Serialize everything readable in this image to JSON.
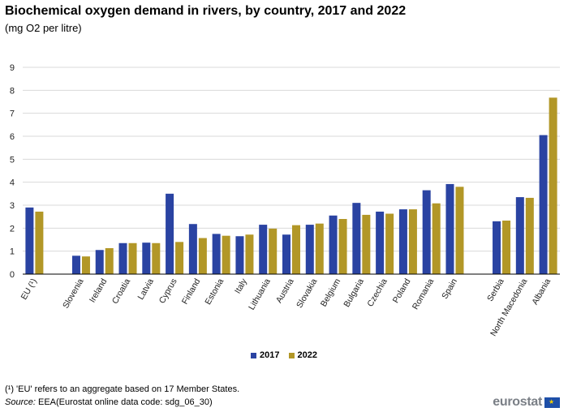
{
  "header": {
    "title": "Biochemical oxygen demand in rivers, by country, 2017 and 2022",
    "subtitle": "(mg  O2 per litre)"
  },
  "legend": {
    "s2017": "2017",
    "s2022": "2022"
  },
  "footer": {
    "footnote": "(¹) 'EU' refers to an aggregate based on 17 Member States.",
    "source_label": "Source:",
    "source_text": " EEA(Eurostat online data code: sdg_06_30)",
    "logo": "eurostat"
  },
  "colors": {
    "s2017": "#2a43a2",
    "s2022": "#b29727",
    "grid": "#d9d9d9",
    "axis": "#000000"
  },
  "chart_data": {
    "type": "bar",
    "title": "Biochemical oxygen demand in rivers, by country, 2017 and 2022",
    "ylabel": "mg O2 per litre",
    "ylim": [
      0,
      9
    ],
    "yticks": [
      "0",
      "1",
      "2",
      "3",
      "4",
      "5",
      "6",
      "7",
      "8",
      "9"
    ],
    "grid": true,
    "legend_position": "bottom",
    "categories": [
      "EU (¹)",
      "",
      "Slovenia",
      "Ireland",
      "Croatia",
      "Latvia",
      "Cyprus",
      "Finland",
      "Estonia",
      "Italy",
      "Lithuania",
      "Austria",
      "Slovakia",
      "Belgium",
      "Bulgaria",
      "Czechia",
      "Poland",
      "Romania",
      "Spain",
      "",
      "Serbia",
      "North Macedonia",
      "Albania"
    ],
    "series": [
      {
        "name": "2017",
        "values": [
          2.9,
          null,
          0.8,
          1.05,
          1.35,
          1.37,
          3.5,
          2.18,
          1.75,
          1.65,
          2.15,
          1.72,
          2.15,
          2.55,
          3.1,
          2.72,
          2.82,
          3.65,
          3.92,
          null,
          2.3,
          3.35,
          6.05
        ]
      },
      {
        "name": "2022",
        "values": [
          2.72,
          null,
          0.77,
          1.13,
          1.35,
          1.35,
          1.4,
          1.57,
          1.67,
          1.72,
          1.98,
          2.13,
          2.2,
          2.4,
          2.58,
          2.63,
          2.82,
          3.08,
          3.8,
          null,
          2.33,
          3.32,
          7.68
        ]
      }
    ]
  }
}
